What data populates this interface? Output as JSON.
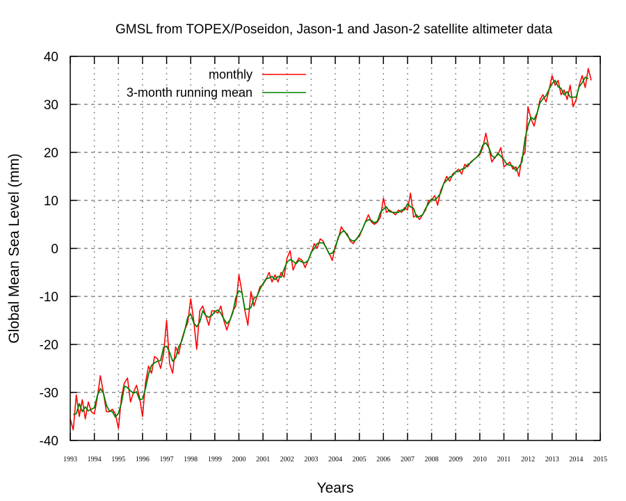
{
  "chart_data": {
    "type": "line",
    "title": "GMSL from TOPEX/Poseidon, Jason-1 and Jason-2 satellite altimeter data",
    "xlabel": "Years",
    "ylabel": "Global Mean Sea Level (mm)",
    "xlim": [
      1993,
      2015
    ],
    "ylim": [
      -40,
      40
    ],
    "xticks": [
      "1993",
      "1994",
      "1995",
      "1996",
      "1997",
      "1998",
      "1999",
      "2000",
      "2001",
      "2002",
      "2003",
      "2004",
      "2005",
      "2006",
      "2007",
      "2008",
      "2009",
      "2010",
      "2011",
      "2012",
      "2013",
      "2014",
      "2015"
    ],
    "yticks": [
      "40",
      "30",
      "20",
      "10",
      "0",
      "-10",
      "-20",
      "-30",
      "-40"
    ],
    "grid": true,
    "legend_position": "top-left",
    "x_start": 1993.0,
    "x_step": 0.125,
    "series": [
      {
        "name": "monthly",
        "color": "#ff0000",
        "values": [
          -35.5,
          -37.8,
          -30.5,
          -35,
          -31.5,
          -35.5,
          -32,
          -34,
          -34.5,
          -31,
          -26.5,
          -30,
          -34,
          -34,
          -33.5,
          -34.5,
          -37.5,
          -31,
          -28,
          -27,
          -32,
          -30,
          -28.5,
          -31,
          -35,
          -28,
          -24.5,
          -26,
          -22.5,
          -23,
          -25,
          -22,
          -15,
          -24,
          -26,
          -20.5,
          -22,
          -19,
          -17,
          -15.5,
          -10.5,
          -15,
          -21,
          -13,
          -12,
          -14,
          -16,
          -13,
          -13,
          -13.5,
          -12,
          -15,
          -17,
          -15,
          -13,
          -12,
          -5.5,
          -9,
          -13,
          -16,
          -9,
          -12,
          -10,
          -8,
          -7.5,
          -6.5,
          -5,
          -7,
          -5.5,
          -7,
          -5,
          -6,
          -2,
          -0.5,
          -4.5,
          -3,
          -2,
          -2.5,
          -4,
          -2.5,
          -1,
          1,
          0,
          2,
          1.5,
          0,
          -1,
          -2.5,
          0.5,
          2,
          4.5,
          3.5,
          3,
          1.5,
          1,
          2,
          2.5,
          4,
          5.5,
          7,
          5.5,
          5,
          5.5,
          6.5,
          10.5,
          7.5,
          8,
          7.5,
          7,
          8,
          7.5,
          8.5,
          8,
          11.5,
          6.5,
          7,
          6,
          7,
          8,
          10,
          10,
          11,
          9,
          12,
          13.5,
          15,
          14,
          15.5,
          16,
          16.5,
          15.5,
          17.5,
          17,
          18,
          18.5,
          19,
          19.5,
          21,
          24,
          21,
          18,
          19,
          19.5,
          21,
          17,
          17.5,
          18,
          16.5,
          17,
          15,
          19,
          20,
          29.5,
          27,
          25.5,
          28,
          31,
          32,
          30.5,
          33,
          36,
          34,
          35,
          32,
          33,
          31,
          34,
          29.5,
          31,
          34,
          36,
          33.5,
          37.5,
          35
        ]
      },
      {
        "name": "3-month running mean",
        "color": "#008000",
        "window": 3
      }
    ]
  }
}
